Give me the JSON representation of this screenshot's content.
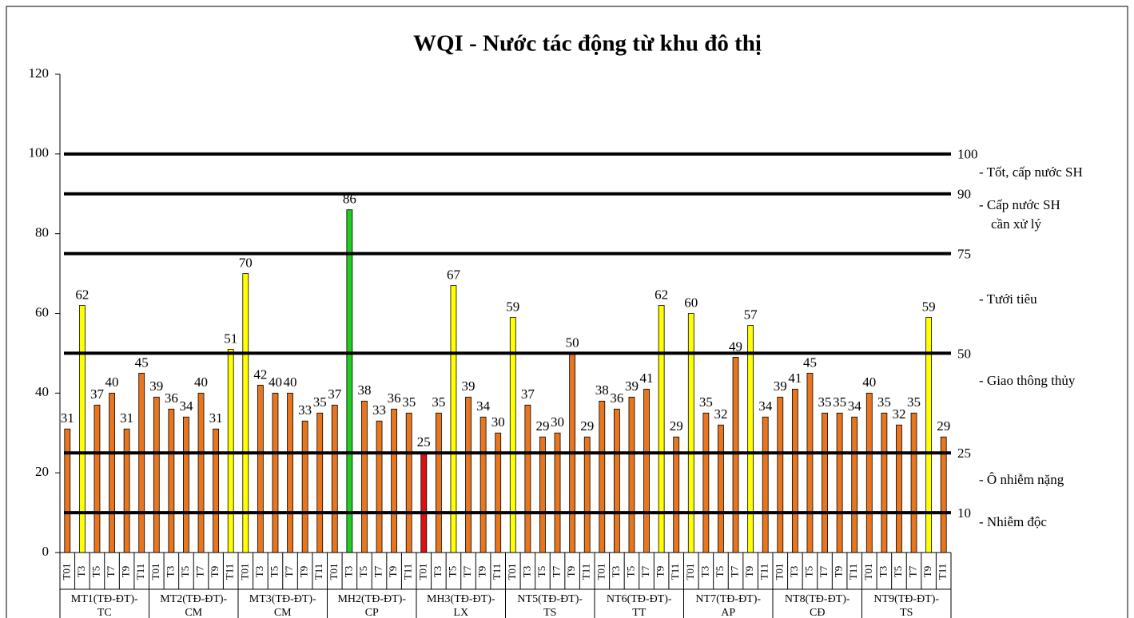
{
  "chart_data": {
    "type": "bar",
    "title": "WQI - Nước tác động từ khu đô thị",
    "categories": [
      "T01",
      "T3",
      "T5",
      "T7",
      "T9",
      "T11",
      "T01",
      "T3",
      "T5",
      "T7",
      "T9",
      "T11",
      "T01",
      "T3",
      "T5",
      "T7",
      "T9",
      "T11",
      "T01",
      "T3",
      "T5",
      "T7",
      "T9",
      "T11",
      "T01",
      "T3",
      "T5",
      "T7",
      "T9",
      "T11",
      "T01",
      "T3",
      "T5",
      "T7",
      "T9",
      "T11",
      "T01",
      "T3",
      "T5",
      "T7",
      "T9",
      "T11",
      "T01",
      "T3",
      "T5",
      "T7",
      "T9",
      "T11",
      "T01",
      "T3",
      "T5",
      "T7",
      "T9",
      "T11",
      "T01",
      "T3",
      "T5",
      "T7",
      "T9",
      "T11"
    ],
    "groups": [
      [
        "MT1(TĐ-ĐT)-",
        "TC"
      ],
      [
        "MT2(TĐ-ĐT)-",
        "CM"
      ],
      [
        "MT3(TĐ-ĐT)-",
        "CM"
      ],
      [
        "MH2(TĐ-ĐT)-",
        "CP"
      ],
      [
        "MH3(TĐ-ĐT)-",
        "LX"
      ],
      [
        "NT5(TĐ-ĐT)-",
        "TS"
      ],
      [
        "NT6(TĐ-ĐT)-",
        "TT"
      ],
      [
        "NT7(TĐ-ĐT)-",
        "AP"
      ],
      [
        "NT8(TĐ-ĐT)-",
        "CĐ"
      ],
      [
        "NT9(TĐ-ĐT)-",
        "TS"
      ]
    ],
    "values": [
      31,
      62,
      37,
      40,
      31,
      45,
      39,
      36,
      34,
      40,
      31,
      51,
      70,
      42,
      40,
      40,
      33,
      35,
      37,
      86,
      38,
      33,
      36,
      35,
      25,
      35,
      67,
      39,
      34,
      30,
      59,
      37,
      29,
      30,
      50,
      29,
      38,
      36,
      39,
      41,
      62,
      29,
      60,
      35,
      32,
      49,
      57,
      34,
      39,
      41,
      45,
      35,
      35,
      34,
      40,
      35,
      32,
      35,
      59,
      29
    ],
    "colors": [
      "#e8761e",
      "#ffff00",
      "#e8761e",
      "#e8761e",
      "#e8761e",
      "#e8761e",
      "#e8761e",
      "#e8761e",
      "#e8761e",
      "#e8761e",
      "#e8761e",
      "#ffff00",
      "#ffff00",
      "#e8761e",
      "#e8761e",
      "#e8761e",
      "#e8761e",
      "#e8761e",
      "#e8761e",
      "#22cc22",
      "#e8761e",
      "#e8761e",
      "#e8761e",
      "#e8761e",
      "#dd1111",
      "#e8761e",
      "#ffff00",
      "#e8761e",
      "#e8761e",
      "#e8761e",
      "#ffff00",
      "#e8761e",
      "#e8761e",
      "#e8761e",
      "#e8761e",
      "#e8761e",
      "#e8761e",
      "#e8761e",
      "#e8761e",
      "#e8761e",
      "#ffff00",
      "#e8761e",
      "#ffff00",
      "#e8761e",
      "#e8761e",
      "#e8761e",
      "#ffff00",
      "#e8761e",
      "#e8761e",
      "#e8761e",
      "#e8761e",
      "#e8761e",
      "#e8761e",
      "#e8761e",
      "#e8761e",
      "#e8761e",
      "#e8761e",
      "#e8761e",
      "#ffff00",
      "#e8761e"
    ],
    "ylim": [
      0,
      120
    ],
    "yticks": [
      0,
      20,
      40,
      60,
      80,
      100,
      120
    ],
    "reference_lines": [
      100,
      90,
      75,
      50,
      25,
      10
    ],
    "zones": [
      [
        "- Tốt, cấp nước SH"
      ],
      [
        "- Cấp nước SH",
        "cần xử lý"
      ],
      [
        "- Tưới tiêu"
      ],
      [
        "- Giao thông thủy"
      ],
      [
        "- Ô nhiễm nặng"
      ],
      [
        "- Nhiễm độc"
      ]
    ]
  }
}
